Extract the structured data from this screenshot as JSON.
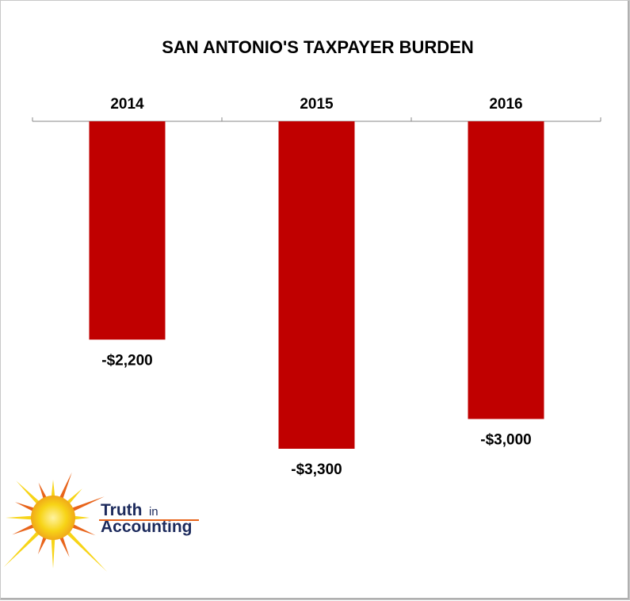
{
  "chart_data": {
    "type": "bar",
    "title": "SAN ANTONIO'S TAXPAYER BURDEN",
    "categories": [
      "2014",
      "2015",
      "2016"
    ],
    "values": [
      -2200,
      -3300,
      -3000
    ],
    "data_labels": [
      "-$2,200",
      "-$3,300",
      "-$3,000"
    ],
    "xlabel": "",
    "ylabel": "",
    "ylim": [
      -3300,
      0
    ],
    "x_axis_position": "top",
    "grid": false,
    "legend": "none",
    "bar_color": "#c00000"
  },
  "logo": {
    "line1_word": "Truth",
    "line1_small": "in",
    "line2": "Accounting",
    "text_color": "#1c2a5c",
    "sun_color": "#f7d417",
    "ray_color": "#e8641a"
  }
}
